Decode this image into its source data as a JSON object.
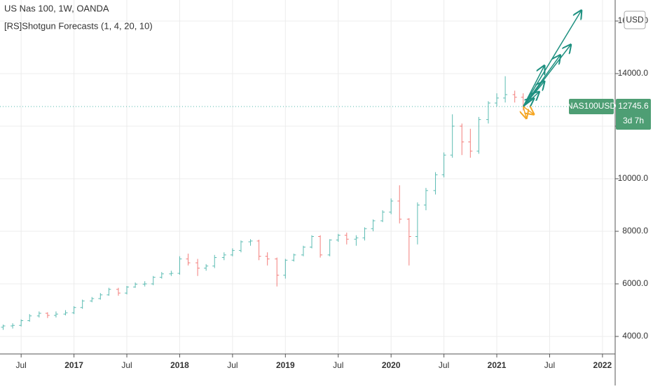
{
  "chart_data": {
    "type": "ohlc",
    "title": "US Nas 100, 1W, OANDA",
    "indicator": "[RS]Shotgun Forecasts (1, 4, 20, 10)",
    "currency": "USD",
    "symbol": "NAS100USD",
    "last_price": 12745.6,
    "last_price_label": "12745.6",
    "countdown": "3d 7h",
    "up_color": "#26a69a",
    "down_color": "#ef5350",
    "grid": true,
    "xlim": [
      2016.3,
      2022.12
    ],
    "xticks": [
      {
        "value": 2016.5,
        "label": "Jul"
      },
      2017,
      {
        "value": 2017.5,
        "label": "Jul"
      },
      2018,
      {
        "value": 2018.5,
        "label": "Jul"
      },
      2019,
      {
        "value": 2019.5,
        "label": "Jul"
      },
      2020,
      {
        "value": 2020.5,
        "label": "Jul"
      },
      2021,
      {
        "value": 2021.5,
        "label": "Jul"
      },
      2022
    ],
    "ylim": [
      3333,
      16800
    ],
    "yticks": [
      {
        "value": 4000,
        "label": "4000.0"
      },
      {
        "value": 6000,
        "label": "6000.0"
      },
      {
        "value": 8000,
        "label": "8000.0"
      },
      {
        "value": 10000,
        "label": "10000.0"
      },
      {
        "value": 12000,
        "label": "12000.0"
      },
      {
        "value": 14000,
        "label": "14000.0"
      },
      {
        "value": 16000,
        "label": "16000.0"
      }
    ],
    "x": [
      2016.33,
      2016.42,
      2016.5,
      2016.58,
      2016.67,
      2016.75,
      2016.83,
      2016.92,
      2017.0,
      2017.08,
      2017.17,
      2017.25,
      2017.33,
      2017.42,
      2017.5,
      2017.58,
      2017.67,
      2017.75,
      2017.83,
      2017.92,
      2018.0,
      2018.08,
      2018.17,
      2018.25,
      2018.33,
      2018.42,
      2018.5,
      2018.58,
      2018.67,
      2018.75,
      2018.83,
      2018.92,
      2019.0,
      2019.08,
      2019.17,
      2019.25,
      2019.33,
      2019.42,
      2019.5,
      2019.58,
      2019.67,
      2019.75,
      2019.83,
      2019.92,
      2020.0,
      2020.08,
      2020.17,
      2020.25,
      2020.33,
      2020.42,
      2020.5,
      2020.58,
      2020.67,
      2020.75,
      2020.83,
      2020.92,
      2021.0,
      2021.08,
      2021.17,
      2021.25
    ],
    "open": [
      4350,
      4400,
      4420,
      4600,
      4780,
      4880,
      4800,
      4850,
      4900,
      5100,
      5350,
      5440,
      5580,
      5790,
      5650,
      5880,
      5990,
      6000,
      6250,
      6380,
      6400,
      6950,
      6800,
      6600,
      6680,
      7000,
      7100,
      7270,
      7600,
      7630,
      7050,
      6950,
      6330,
      6900,
      7100,
      7400,
      7800,
      7100,
      7670,
      7850,
      7700,
      7750,
      8100,
      8400,
      8730,
      9150,
      8460,
      7800,
      9000,
      9550,
      10150,
      10900,
      12000,
      11400,
      11050,
      12250,
      12880,
      13070,
      13200,
      13100
    ],
    "high": [
      4450,
      4500,
      4650,
      4850,
      4950,
      4920,
      4950,
      5000,
      5150,
      5400,
      5500,
      5650,
      5850,
      5850,
      5920,
      6050,
      6100,
      6300,
      6450,
      6500,
      7050,
      7150,
      6950,
      6750,
      7100,
      7200,
      7350,
      7650,
      7700,
      7680,
      7200,
      7000,
      6950,
      7150,
      7450,
      7850,
      7850,
      7700,
      7900,
      7950,
      7850,
      8150,
      8450,
      8800,
      9250,
      9750,
      8500,
      9100,
      9650,
      10250,
      11000,
      12450,
      12100,
      11900,
      12350,
      12950,
      13250,
      13900,
      13350,
      13250
    ],
    "low": [
      4250,
      4300,
      4380,
      4560,
      4720,
      4700,
      4720,
      4800,
      4850,
      5050,
      5300,
      5400,
      5550,
      5550,
      5600,
      5850,
      5900,
      5950,
      6200,
      6300,
      6350,
      6700,
      6300,
      6500,
      6600,
      6900,
      7050,
      7200,
      7450,
      6900,
      6700,
      5900,
      6200,
      6850,
      7050,
      7350,
      7000,
      7050,
      7600,
      7500,
      7450,
      7650,
      8000,
      8350,
      8650,
      8300,
      6700,
      7500,
      8800,
      9400,
      10050,
      10800,
      10900,
      10800,
      10950,
      12100,
      12750,
      12900,
      12900,
      12600
    ],
    "close": [
      4400,
      4420,
      4600,
      4780,
      4880,
      4800,
      4850,
      4900,
      5100,
      5350,
      5440,
      5580,
      5790,
      5650,
      5880,
      5990,
      6000,
      6250,
      6380,
      6400,
      6950,
      6800,
      6600,
      6680,
      7000,
      7100,
      7270,
      7600,
      7630,
      7050,
      6950,
      6330,
      6900,
      7100,
      7400,
      7800,
      7100,
      7670,
      7850,
      7700,
      7750,
      8100,
      8400,
      8730,
      9150,
      8460,
      7800,
      9000,
      9550,
      10150,
      10900,
      12000,
      11400,
      11050,
      12250,
      12880,
      13070,
      13200,
      13100,
      12746
    ],
    "up_forecasts": {
      "color": "#1e9080",
      "x": [
        2021.8,
        2021.7,
        2021.6,
        2021.45,
        2021.45,
        2021.4,
        2021.35
      ],
      "values": [
        16400,
        15100,
        14700,
        14300,
        13700,
        13300,
        13050
      ]
    },
    "down_forecasts": {
      "color": "#f5a623",
      "x": [
        2021.28,
        2021.35
      ],
      "values": [
        12300,
        12450
      ]
    }
  }
}
